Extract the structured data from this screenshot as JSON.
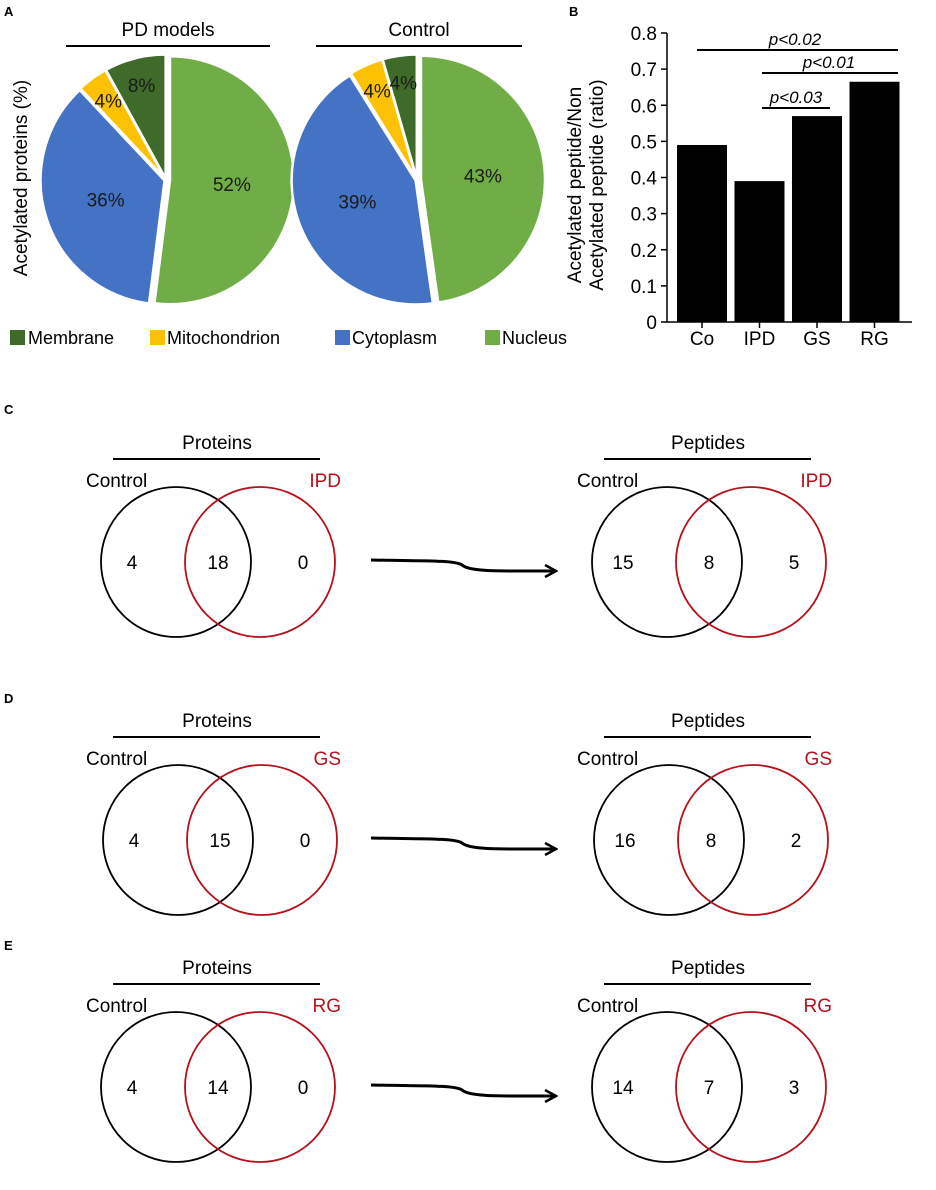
{
  "colors": {
    "membrane": "#3e6a2a",
    "mitochondrion": "#fcc100",
    "cytoplasm": "#4472c4",
    "nucleus": "#70ad47",
    "control_circle": "#000000",
    "condition_circle": "#b5121b"
  },
  "panel_letters": {
    "A": "A",
    "B": "B",
    "C": "C",
    "D": "D",
    "E": "E"
  },
  "chart_data": [
    {
      "type": "pie",
      "panel": "A",
      "title": "PD models",
      "ylabel": "Acetylated proteins (%)",
      "categories": [
        "Nucleus",
        "Cytoplasm",
        "Mitochondrion",
        "Membrane"
      ],
      "values": [
        52,
        36,
        4,
        8
      ],
      "labels": [
        "52%",
        "36%",
        "4%",
        "8%"
      ]
    },
    {
      "type": "pie",
      "panel": "A",
      "title": "Control",
      "categories": [
        "Nucleus",
        "Cytoplasm",
        "Mitochondrion",
        "Membrane"
      ],
      "values": [
        43,
        39,
        4,
        4
      ],
      "labels": [
        "43%",
        "39%",
        "4%",
        "4%"
      ]
    },
    {
      "type": "bar",
      "panel": "B",
      "categories": [
        "Co",
        "IPD",
        "GS",
        "RG"
      ],
      "values": [
        0.49,
        0.39,
        0.57,
        0.665
      ],
      "ylabel_line1": "Acetylated peptide/Non",
      "ylabel_line2": "Acetylated peptide (ratio)",
      "ylim": [
        0,
        0.8
      ],
      "yticks": [
        "0",
        "0.1",
        "0.2",
        "0.3",
        "0.4",
        "0.5",
        "0.6",
        "0.7",
        "0.8"
      ],
      "significance": [
        {
          "from": "Co",
          "to": "RG",
          "label": "p<0.02"
        },
        {
          "from": "IPD",
          "to": "RG",
          "label": "p<0.01"
        },
        {
          "from": "IPD",
          "to": "GS",
          "label": "p<0.03"
        }
      ]
    }
  ],
  "legend": {
    "items": [
      {
        "name": "Membrane",
        "color": "#3e6a2a"
      },
      {
        "name": "Mitochondrion",
        "color": "#fcc100"
      },
      {
        "name": "Cytoplasm",
        "color": "#4472c4"
      },
      {
        "name": "Nucleus",
        "color": "#70ad47"
      }
    ]
  },
  "venns": [
    {
      "panel": "C",
      "proteins": {
        "title": "Proteins",
        "left_label": "Control",
        "right_label": "IPD",
        "left": "4",
        "overlap": "18",
        "right": "0"
      },
      "peptides": {
        "title": "Peptides",
        "left_label": "Control",
        "right_label": "IPD",
        "left": "15",
        "overlap": "8",
        "right": "5"
      }
    },
    {
      "panel": "D",
      "proteins": {
        "title": "Proteins",
        "left_label": "Control",
        "right_label": "GS",
        "left": "4",
        "overlap": "15",
        "right": "0"
      },
      "peptides": {
        "title": "Peptides",
        "left_label": "Control",
        "right_label": "GS",
        "left": "16",
        "overlap": "8",
        "right": "2"
      }
    },
    {
      "panel": "E",
      "proteins": {
        "title": "Proteins",
        "left_label": "Control",
        "right_label": "RG",
        "left": "4",
        "overlap": "14",
        "right": "0"
      },
      "peptides": {
        "title": "Peptides",
        "left_label": "Control",
        "right_label": "RG",
        "left": "14",
        "overlap": "7",
        "right": "3"
      }
    }
  ]
}
